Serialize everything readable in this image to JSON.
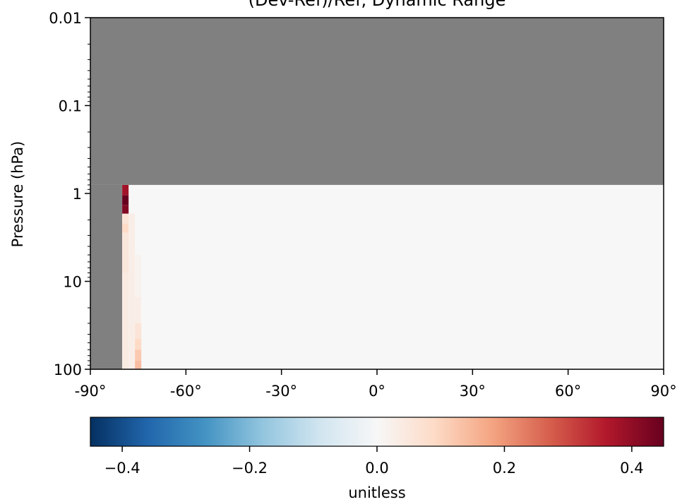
{
  "chart_data": {
    "type": "heatmap",
    "title": "(Dev-Ref)/Ref, Dynamic Range",
    "xlabel": "",
    "ylabel": "Pressure (hPa)",
    "x_range": [
      -90,
      90
    ],
    "y_range": [
      100,
      0.01
    ],
    "y_scale": "log",
    "x_ticks": [
      "-90°",
      "-60°",
      "-30°",
      "0°",
      "30°",
      "60°",
      "90°"
    ],
    "x_tick_values": [
      -90,
      -60,
      -30,
      0,
      30,
      60,
      90
    ],
    "y_ticks": [
      "0.01",
      "0.1",
      "1",
      "10",
      "100"
    ],
    "y_tick_values": [
      0.01,
      0.1,
      1,
      10,
      100
    ],
    "background_color": "#808080",
    "missing_regions": [
      {
        "lat": [
          -90,
          90
        ],
        "pressure": [
          0.01,
          0.8
        ]
      },
      {
        "lat": [
          -90,
          -80
        ],
        "pressure": [
          0.8,
          100
        ]
      }
    ],
    "data_region": {
      "lat": [
        -80,
        90
      ],
      "pressure": [
        0.8,
        100
      ],
      "base_value": 0.0
    },
    "cells": [
      {
        "lat": [
          -80,
          -78
        ],
        "pressure": [
          0.8,
          1.05
        ],
        "value": 0.38
      },
      {
        "lat": [
          -80,
          -78
        ],
        "pressure": [
          1.05,
          1.35
        ],
        "value": 0.45
      },
      {
        "lat": [
          -80,
          -78
        ],
        "pressure": [
          1.35,
          1.7
        ],
        "value": 0.42
      },
      {
        "lat": [
          -80,
          -78
        ],
        "pressure": [
          1.7,
          2.2
        ],
        "value": 0.06
      },
      {
        "lat": [
          -80,
          -78
        ],
        "pressure": [
          2.2,
          2.8
        ],
        "value": 0.09
      },
      {
        "lat": [
          -80,
          -78
        ],
        "pressure": [
          2.8,
          8
        ],
        "value": 0.05
      },
      {
        "lat": [
          -80,
          -78
        ],
        "pressure": [
          8,
          100
        ],
        "value": 0.04
      },
      {
        "lat": [
          -78,
          -76
        ],
        "pressure": [
          1.7,
          30
        ],
        "value": 0.03
      },
      {
        "lat": [
          -78,
          -76
        ],
        "pressure": [
          30,
          100
        ],
        "value": 0.03
      },
      {
        "lat": [
          -76,
          -74
        ],
        "pressure": [
          5,
          15
        ],
        "value": 0.015
      },
      {
        "lat": [
          -76,
          -74
        ],
        "pressure": [
          15,
          30
        ],
        "value": 0.03
      },
      {
        "lat": [
          -76,
          -74
        ],
        "pressure": [
          30,
          45
        ],
        "value": 0.06
      },
      {
        "lat": [
          -76,
          -74
        ],
        "pressure": [
          45,
          60
        ],
        "value": 0.09
      },
      {
        "lat": [
          -76,
          -74
        ],
        "pressure": [
          60,
          80
        ],
        "value": 0.12
      },
      {
        "lat": [
          -76,
          -74
        ],
        "pressure": [
          80,
          100
        ],
        "value": 0.14
      }
    ],
    "colorbar": {
      "colormap": "RdBu_r",
      "range": [
        -0.45,
        0.45
      ],
      "ticks": [
        -0.4,
        -0.2,
        0.0,
        0.2,
        0.4
      ],
      "tick_labels": [
        "−0.4",
        "−0.2",
        "0.0",
        "0.2",
        "0.4"
      ],
      "label": "unitless",
      "orientation": "horizontal"
    }
  }
}
